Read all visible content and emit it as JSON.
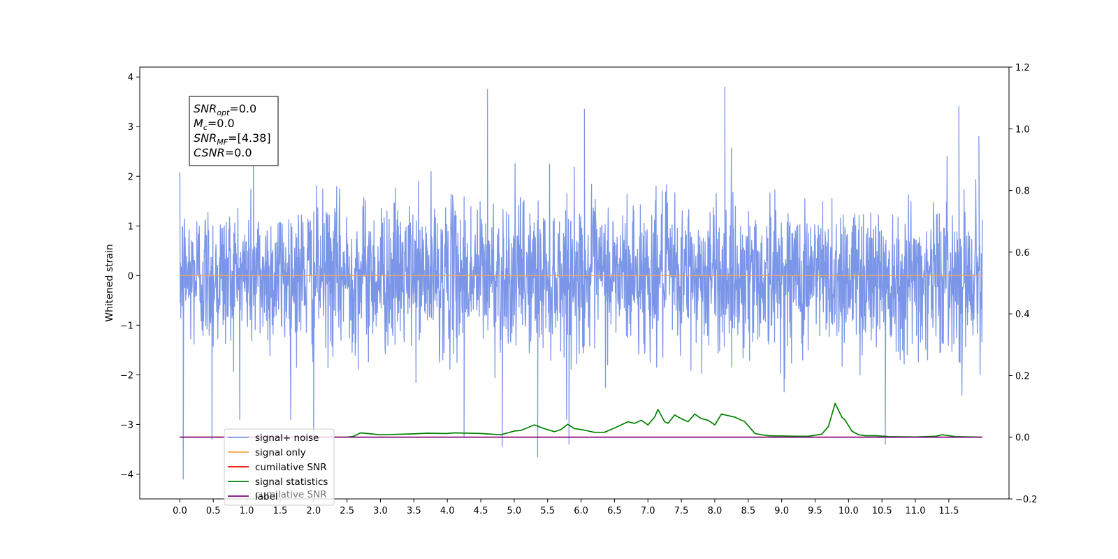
{
  "chart_data": {
    "type": "line",
    "xlim": [
      -0.6,
      12.4
    ],
    "ylim_left": [
      -4.5,
      4.2
    ],
    "ylim_right": [
      -0.2,
      1.2
    ],
    "x_ticks": [
      0.0,
      0.5,
      1.0,
      1.5,
      2.0,
      2.5,
      3.0,
      3.5,
      4.0,
      4.5,
      5.0,
      5.5,
      6.0,
      6.5,
      7.0,
      7.5,
      8.0,
      8.5,
      9.0,
      9.5,
      10.0,
      10.5,
      11.0,
      11.5
    ],
    "x_tick_labels": [
      "0.0",
      "0.5",
      "1.0",
      "1.5",
      "2.0",
      "2.5",
      "3.0",
      "3.5",
      "4.0",
      "4.5",
      "5.0",
      "5.5",
      "6.0",
      "6.5",
      "7.0",
      "7.5",
      "8.0",
      "8.5",
      "9.0",
      "9.5",
      "10.0",
      "10.5",
      "11.0",
      "11.5"
    ],
    "y_left_ticks": [
      4,
      3,
      2,
      1,
      0,
      -1,
      -2,
      -3,
      -4
    ],
    "y_left_tick_labels": [
      "4",
      "3",
      "2",
      "1",
      "0",
      "−1",
      "−2",
      "−3",
      "−4"
    ],
    "y_right_ticks": [
      1.2,
      1.0,
      0.8,
      0.6,
      0.4,
      0.2,
      0.0,
      -0.2
    ],
    "y_right_tick_labels": [
      "1.2",
      "1.0",
      "0.8",
      "0.6",
      "0.4",
      "0.2",
      "0.0",
      "−0.2"
    ],
    "ylabel_left": "Whitened strain",
    "grid": false,
    "legend_position": "lower-left",
    "annotation": {
      "lines": [
        {
          "base": "SNR",
          "sub": "opt",
          "rest": "=0.0"
        },
        {
          "base": "M",
          "sub": "c",
          "rest": "=0.0"
        },
        {
          "base": "SNR",
          "sub": "MF",
          "rest": "=[4.38]"
        },
        {
          "base": "CSNR",
          "sub": "",
          "rest": "=0.0"
        }
      ]
    },
    "series": [
      {
        "name": "signal+ noise",
        "color": "#7b96e8",
        "axis": "left",
        "kind": "noise",
        "x_range": [
          0.0,
          12.0
        ],
        "noise_std": 0.75,
        "extreme_points": [
          {
            "x": 0.05,
            "y": -4.1
          },
          {
            "x": 0.48,
            "y": -3.3
          },
          {
            "x": 1.1,
            "y": 2.3
          },
          {
            "x": 2.0,
            "y": -3.3
          },
          {
            "x": 4.25,
            "y": -3.25
          },
          {
            "x": 4.6,
            "y": 3.75
          },
          {
            "x": 4.82,
            "y": -3.45
          },
          {
            "x": 5.35,
            "y": -3.65
          },
          {
            "x": 5.82,
            "y": -3.4
          },
          {
            "x": 6.05,
            "y": 3.35
          },
          {
            "x": 8.15,
            "y": 3.8
          },
          {
            "x": 10.55,
            "y": -3.4
          },
          {
            "x": 11.65,
            "y": 3.4
          },
          {
            "x": 11.95,
            "y": 2.8
          }
        ]
      },
      {
        "name": "signal only",
        "color": "#ffa64d",
        "axis": "left",
        "x": [
          0.0,
          12.0
        ],
        "y": [
          0.0,
          0.0
        ]
      },
      {
        "name": "cumilative SNR",
        "color": "#ff0000",
        "axis": "right",
        "x": [
          0.0,
          12.0
        ],
        "y": [
          0.0,
          0.0
        ]
      },
      {
        "name": "signal statistics",
        "color": "#008000",
        "axis": "right",
        "x": [
          0.0,
          2.5,
          2.6,
          2.7,
          2.8,
          3.0,
          3.2,
          3.5,
          3.7,
          4.0,
          4.1,
          4.5,
          4.8,
          5.0,
          5.1,
          5.3,
          5.45,
          5.6,
          5.7,
          5.8,
          5.9,
          6.0,
          6.2,
          6.35,
          6.5,
          6.6,
          6.7,
          6.8,
          6.9,
          7.0,
          7.1,
          7.15,
          7.25,
          7.3,
          7.4,
          7.5,
          7.6,
          7.7,
          7.8,
          7.9,
          8.0,
          8.1,
          8.2,
          8.3,
          8.45,
          8.6,
          8.7,
          8.8,
          8.9,
          9.0,
          9.2,
          9.4,
          9.6,
          9.7,
          9.8,
          9.9,
          9.95,
          10.05,
          10.15,
          10.25,
          10.4,
          10.6,
          11.0,
          11.3,
          11.4,
          11.6,
          12.0
        ],
        "y": [
          0.0,
          0.0,
          0.003,
          0.014,
          0.012,
          0.008,
          0.009,
          0.011,
          0.013,
          0.012,
          0.014,
          0.012,
          0.008,
          0.02,
          0.022,
          0.04,
          0.028,
          0.018,
          0.025,
          0.042,
          0.028,
          0.025,
          0.016,
          0.016,
          0.03,
          0.04,
          0.05,
          0.045,
          0.055,
          0.04,
          0.065,
          0.09,
          0.05,
          0.045,
          0.072,
          0.06,
          0.05,
          0.075,
          0.06,
          0.055,
          0.04,
          0.075,
          0.07,
          0.065,
          0.05,
          0.012,
          0.008,
          0.005,
          0.004,
          0.004,
          0.003,
          0.003,
          0.01,
          0.035,
          0.11,
          0.065,
          0.055,
          0.02,
          0.008,
          0.005,
          0.005,
          0.002,
          0.001,
          0.003,
          0.008,
          0.002,
          0.0
        ]
      },
      {
        "name": "label",
        "color": "#800080",
        "axis": "right",
        "x": [
          0.0,
          12.0
        ],
        "y": [
          0.0,
          0.0
        ]
      }
    ]
  },
  "legend": {
    "items": [
      {
        "label": "signal+ noise",
        "color": "#7b96e8"
      },
      {
        "label": "signal only",
        "color": "#ffa64d"
      },
      {
        "label": "cumilative SNR",
        "color": "#ff0000"
      },
      {
        "label": "signal statistics",
        "color": "#008000"
      },
      {
        "label": "label",
        "color": "#800080"
      }
    ],
    "hidden_text": "cumilative SNR"
  }
}
